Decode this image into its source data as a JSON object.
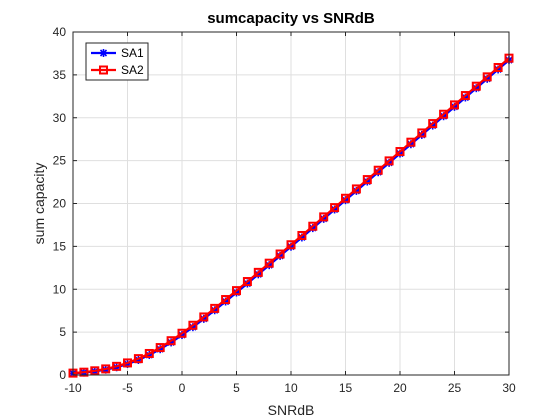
{
  "chart_data": {
    "type": "line",
    "title": "sumcapacity vs SNRdB",
    "xlabel": "SNRdB",
    "ylabel": "sum capacity",
    "xlim": [
      -10,
      30
    ],
    "ylim": [
      0,
      40
    ],
    "xticks": [
      -10,
      -5,
      0,
      5,
      10,
      15,
      20,
      25,
      30
    ],
    "yticks": [
      0,
      5,
      10,
      15,
      20,
      25,
      30,
      35,
      40
    ],
    "grid": true,
    "legend_position": "top-left",
    "x": [
      -10,
      -9,
      -8,
      -7,
      -6,
      -5,
      -4,
      -3,
      -2,
      -1,
      0,
      1,
      2,
      3,
      4,
      5,
      6,
      7,
      8,
      9,
      10,
      11,
      12,
      13,
      14,
      15,
      16,
      17,
      18,
      19,
      20,
      21,
      22,
      23,
      24,
      25,
      26,
      27,
      28,
      29,
      30
    ],
    "series": [
      {
        "name": "SA1",
        "color": "#0000ff",
        "marker": "asterisk",
        "values": [
          0.19,
          0.28,
          0.42,
          0.62,
          0.9,
          1.28,
          1.75,
          2.33,
          3.01,
          3.8,
          4.66,
          5.58,
          6.55,
          7.55,
          8.57,
          9.62,
          10.67,
          11.74,
          12.81,
          13.89,
          14.96,
          16.04,
          17.13,
          18.21,
          19.3,
          20.39,
          21.47,
          22.56,
          23.65,
          24.74,
          25.83,
          26.91,
          28.0,
          29.09,
          30.18,
          31.27,
          32.36,
          33.45,
          34.54,
          35.63,
          36.72
        ]
      },
      {
        "name": "SA2",
        "color": "#ff0000",
        "marker": "square",
        "values": [
          0.22,
          0.33,
          0.49,
          0.71,
          1.01,
          1.41,
          1.91,
          2.51,
          3.2,
          4.0,
          4.87,
          5.8,
          6.77,
          7.77,
          8.8,
          9.84,
          10.9,
          11.97,
          13.04,
          14.11,
          15.19,
          16.27,
          17.35,
          18.44,
          19.52,
          20.61,
          21.7,
          22.79,
          23.88,
          24.97,
          26.06,
          27.15,
          28.23,
          29.32,
          30.41,
          31.5,
          32.59,
          33.68,
          34.77,
          35.86,
          36.95
        ]
      }
    ]
  }
}
